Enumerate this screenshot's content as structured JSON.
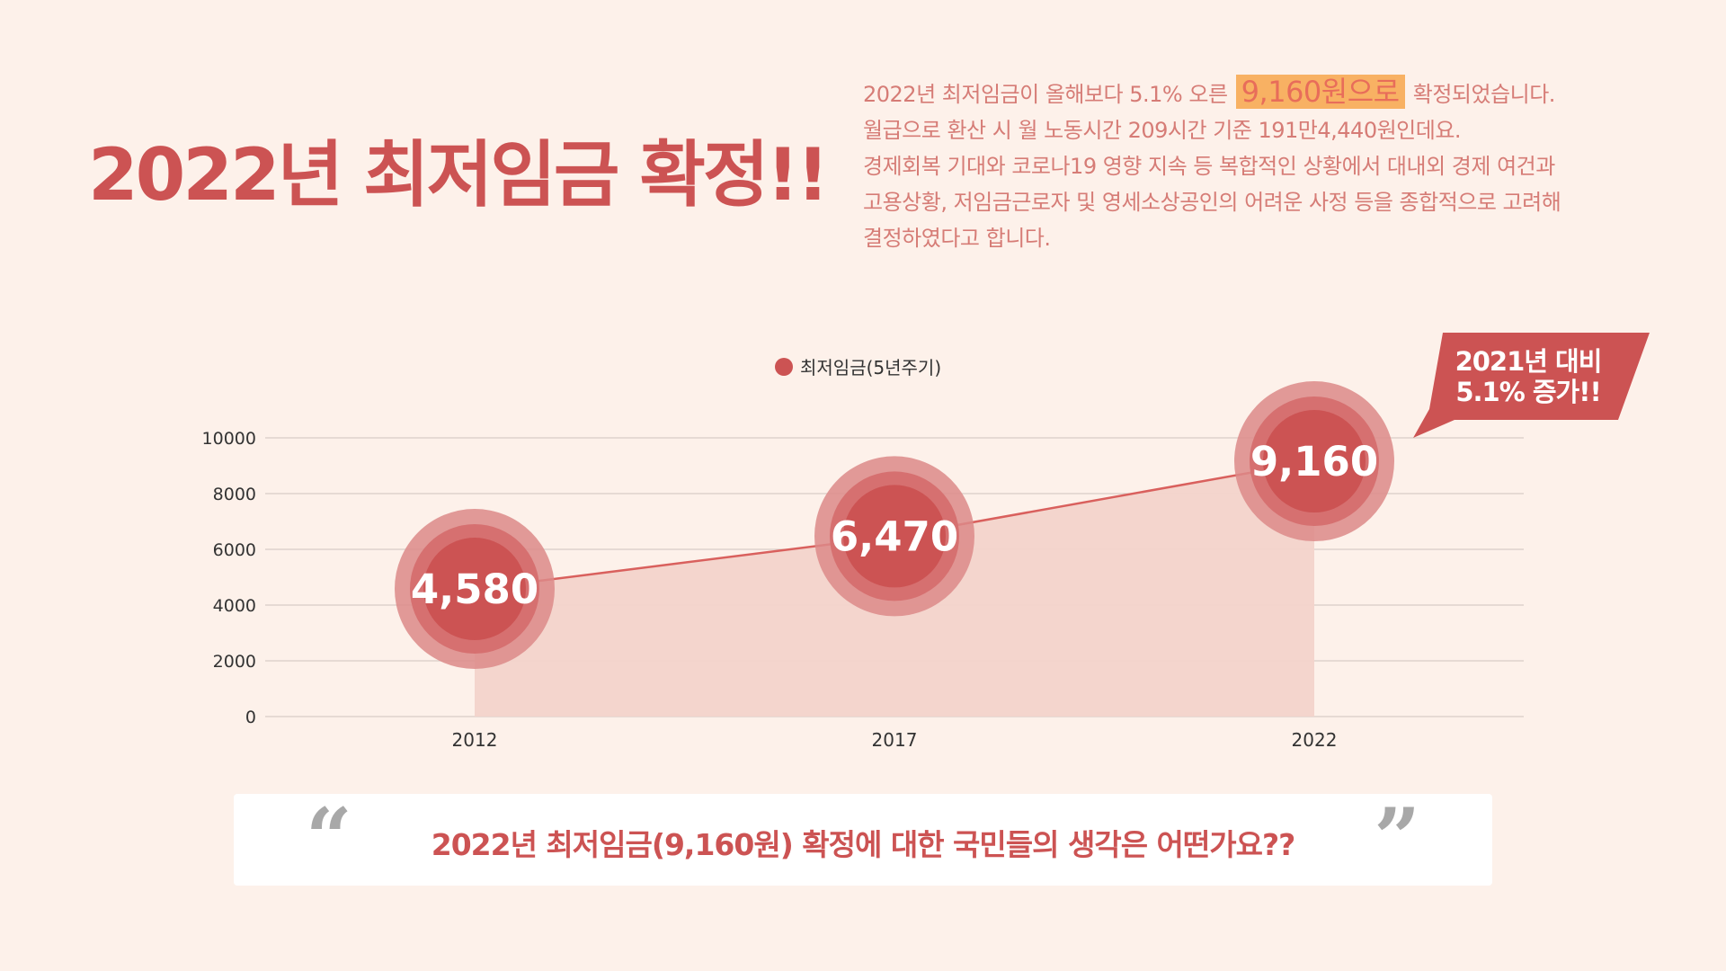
{
  "title": "2022년 최저임금 확정!!",
  "description": {
    "line1_before": "2022년 최저임금이 올해보다 5.1% 오른",
    "line1_highlight": "9,160원으로",
    "line1_after": "확정되었습니다.",
    "line2": "월급으로 환산 시 월 노동시간 209시간 기준 191만4,440원인데요.",
    "line3": "경제회복 기대와 코로나19 영향 지속 등 복합적인 상황에서 대내외 경제 여건과",
    "line4": "고용상황, 저임금근로자 및 영세소상공인의 어려운 사정 등을 종합적으로 고려해",
    "line5": "결정하였다고 합니다."
  },
  "callout": {
    "line1": "2021년 대비",
    "line2": "5.1% 증가!!"
  },
  "quote": {
    "open_mark": "“",
    "text": "2022년 최저임금(9,160원) 확정에 대한 국민들의 생각은 어떤가요??",
    "close_mark": "”"
  },
  "colors": {
    "background": "#fdf1ea",
    "accent": "#cc5353",
    "area_fill": "#f3d3cb",
    "highlight": "#f8b163",
    "grid": "#d9cdc6"
  },
  "chart_data": {
    "type": "area",
    "categories": [
      "2012",
      "2017",
      "2022"
    ],
    "series": [
      {
        "name": "최저임금(5년주기)",
        "values": [
          4580,
          6470,
          9160
        ],
        "labels": [
          "4,580",
          "6,470",
          "9,160"
        ]
      }
    ],
    "yticks": [
      "0",
      "2000",
      "4000",
      "6000",
      "8000",
      "10000"
    ],
    "ylim": [
      0,
      10000
    ],
    "grid": true,
    "legend_position": "top-center",
    "title": "",
    "xlabel": "",
    "ylabel": ""
  }
}
